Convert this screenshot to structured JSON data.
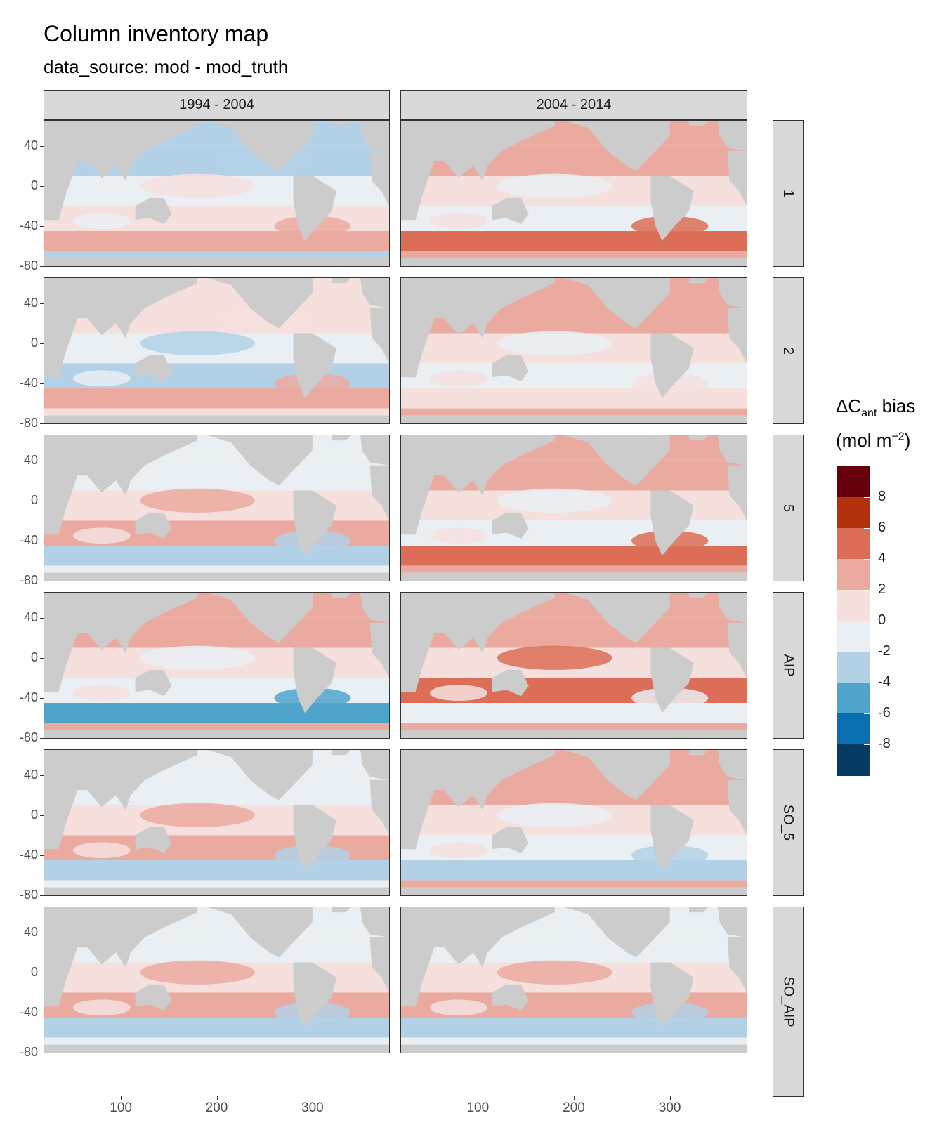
{
  "title": "Column inventory map",
  "subtitle": "data_source: mod - mod_truth",
  "columns": [
    "1994 - 2004",
    "2004 - 2014"
  ],
  "rows": [
    "1",
    "2",
    "5",
    "AIP",
    "SO_5",
    "SO_AIP"
  ],
  "y_ticks": [
    "40",
    "0",
    "-40",
    "-80"
  ],
  "x_ticks": [
    "100",
    "200",
    "300"
  ],
  "legend": {
    "title_prefix": "ΔC",
    "title_sub": "ant",
    "title_suffix": " bias",
    "unit_prefix": "(mol m",
    "unit_sup": "−2",
    "unit_suffix": ")",
    "labels": [
      "8",
      "6",
      "4",
      "2",
      "0",
      "-2",
      "-4",
      "-6",
      "-8"
    ],
    "colors": [
      "#67000d",
      "#b2300b",
      "#dc6e57",
      "#ebaaa0",
      "#f6e0de",
      "#e9eff3",
      "#b3d1e6",
      "#4fa4cc",
      "#0a6fb0",
      "#053a63"
    ]
  },
  "map_data": {
    "type": "faceted-raster-map",
    "x_range": [
      20,
      380
    ],
    "y_range": [
      -80,
      65
    ],
    "land_color": "#cccccc"
  }
}
